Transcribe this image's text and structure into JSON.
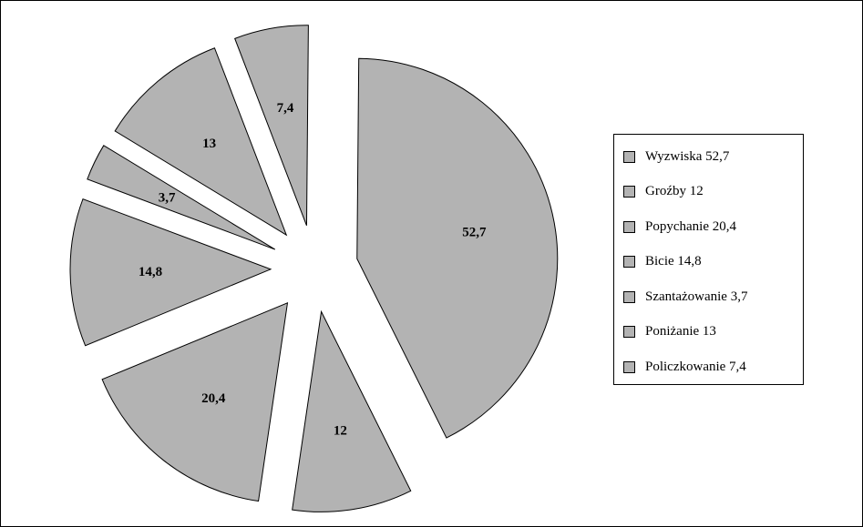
{
  "chart_data": {
    "type": "pie",
    "exploded": true,
    "slice_color": "#b3b3b3",
    "edge_color": "#000000",
    "slices": [
      {
        "value": 52.7,
        "label": "52,7",
        "legend": "Wyzwiska 52,7"
      },
      {
        "value": 12,
        "label": "12",
        "legend": "Groźby 12"
      },
      {
        "value": 20.4,
        "label": "20,4",
        "legend": "Popychanie 20,4"
      },
      {
        "value": 14.8,
        "label": "14,8",
        "legend": "Bicie 14,8"
      },
      {
        "value": 3.7,
        "label": "3,7",
        "legend": "Szantażowanie 3,7"
      },
      {
        "value": 13,
        "label": "13",
        "legend": "Poniżanie 13"
      },
      {
        "value": 7.4,
        "label": "7,4",
        "legend": "Policzkowanie 7,4"
      }
    ],
    "legend_position": "right"
  }
}
